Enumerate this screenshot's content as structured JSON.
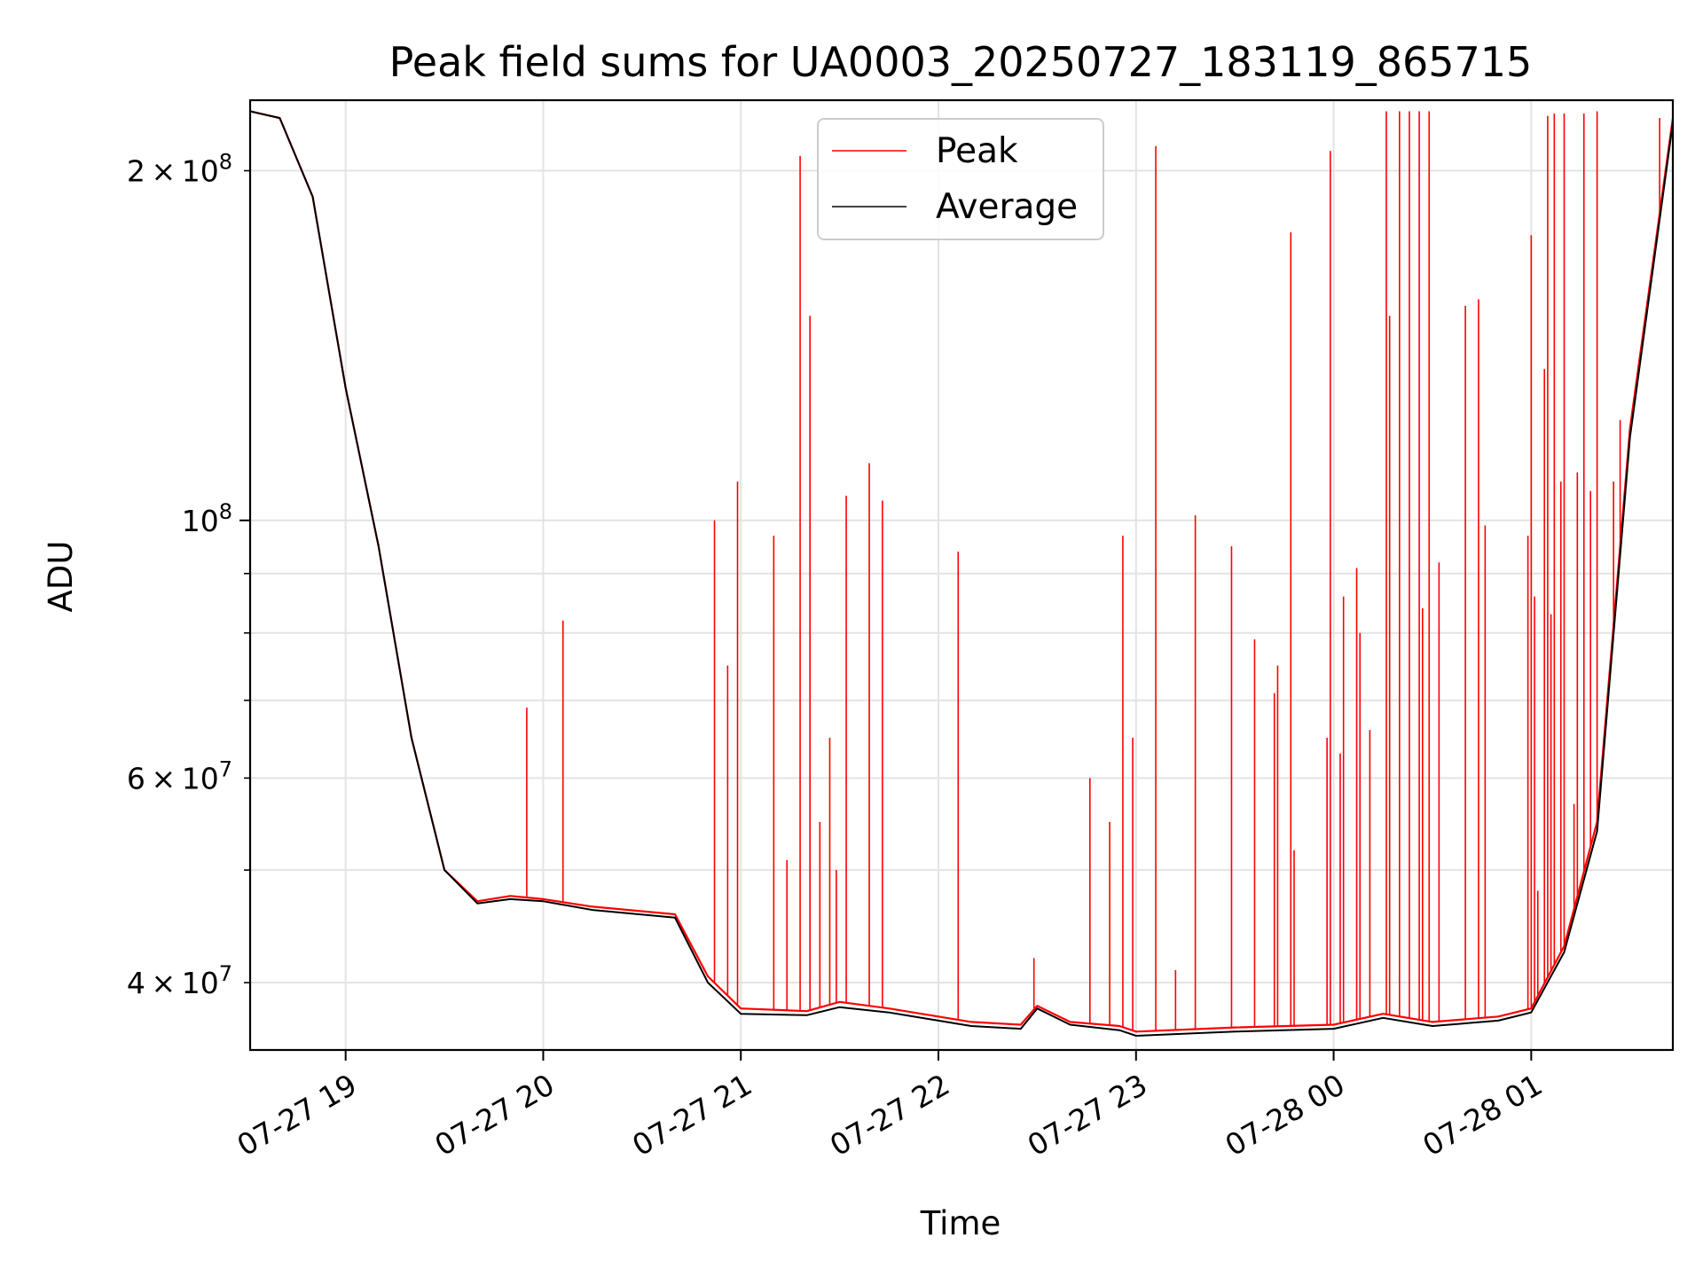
{
  "chart_data": {
    "type": "line",
    "title": "Peak field sums for UA0003_20250727_183119_865715",
    "xlabel": "Time",
    "ylabel": "ADU",
    "y_scale": "log",
    "grid": true,
    "legend_position": "top-center",
    "xlim": [
      "07-27 18:31",
      "07-28 01:43"
    ],
    "ylim": [
      35000000,
      230000000
    ],
    "x_ticks": [
      "07-27 19",
      "07-27 20",
      "07-27 21",
      "07-27 22",
      "07-27 23",
      "07-28 00",
      "07-28 01"
    ],
    "y_ticks_major": [
      {
        "value": 100000000,
        "label": "10^8"
      }
    ],
    "y_ticks_minor": [
      {
        "value": 40000000,
        "label": "4×10^7"
      },
      {
        "value": 60000000,
        "label": "6×10^7"
      },
      {
        "value": 200000000,
        "label": "2×10^8"
      }
    ],
    "y_ticks_minor_unlabeled": [
      50000000,
      70000000,
      80000000,
      90000000
    ],
    "series": [
      {
        "name": "Peak",
        "color": "#ff0000",
        "baseline": [
          [
            "07-27 18:31",
            225000000
          ],
          [
            "07-27 18:40",
            222000000
          ],
          [
            "07-27 18:50",
            190000000
          ],
          [
            "07-27 19:00",
            130000000
          ],
          [
            "07-27 19:10",
            95000000
          ],
          [
            "07-27 19:20",
            65000000
          ],
          [
            "07-27 19:30",
            50000000
          ],
          [
            "07-27 19:40",
            47000000
          ],
          [
            "07-27 19:50",
            47500000
          ],
          [
            "07-27 20:00",
            47200000
          ],
          [
            "07-27 20:15",
            46500000
          ],
          [
            "07-27 20:40",
            45800000
          ],
          [
            "07-27 20:50",
            40500000
          ],
          [
            "07-27 21:00",
            38000000
          ],
          [
            "07-27 21:20",
            37800000
          ],
          [
            "07-27 21:30",
            38500000
          ],
          [
            "07-27 21:45",
            38000000
          ],
          [
            "07-27 22:10",
            37000000
          ],
          [
            "07-27 22:25",
            36800000
          ],
          [
            "07-27 22:30",
            38200000
          ],
          [
            "07-27 22:40",
            37000000
          ],
          [
            "07-27 22:55",
            36700000
          ],
          [
            "07-27 23:00",
            36300000
          ],
          [
            "07-27 23:30",
            36600000
          ],
          [
            "07-28 00:00",
            36800000
          ],
          [
            "07-28 00:15",
            37600000
          ],
          [
            "07-28 00:30",
            37000000
          ],
          [
            "07-28 00:50",
            37400000
          ],
          [
            "07-28 01:00",
            38000000
          ],
          [
            "07-28 01:10",
            43000000
          ],
          [
            "07-28 01:20",
            55000000
          ],
          [
            "07-28 01:30",
            120000000
          ],
          [
            "07-28 01:43",
            222000000
          ]
        ],
        "spikes": [
          [
            "07-27 19:55",
            69000000
          ],
          [
            "07-27 20:06",
            82000000
          ],
          [
            "07-27 20:52",
            100000000
          ],
          [
            "07-27 20:56",
            75000000
          ],
          [
            "07-27 20:59",
            108000000
          ],
          [
            "07-27 21:10",
            97000000
          ],
          [
            "07-27 21:14",
            51000000
          ],
          [
            "07-27 21:18",
            206000000
          ],
          [
            "07-27 21:21",
            150000000
          ],
          [
            "07-27 21:24",
            55000000
          ],
          [
            "07-27 21:27",
            65000000
          ],
          [
            "07-27 21:29",
            50000000
          ],
          [
            "07-27 21:32",
            105000000
          ],
          [
            "07-27 21:39",
            112000000
          ],
          [
            "07-27 21:43",
            104000000
          ],
          [
            "07-27 22:06",
            94000000
          ],
          [
            "07-27 22:29",
            42000000
          ],
          [
            "07-27 22:46",
            60000000
          ],
          [
            "07-27 22:52",
            55000000
          ],
          [
            "07-27 22:56",
            97000000
          ],
          [
            "07-27 22:59",
            65000000
          ],
          [
            "07-27 23:06",
            210000000
          ],
          [
            "07-27 23:12",
            41000000
          ],
          [
            "07-27 23:18",
            101000000
          ],
          [
            "07-27 23:29",
            95000000
          ],
          [
            "07-27 23:36",
            79000000
          ],
          [
            "07-27 23:42",
            71000000
          ],
          [
            "07-27 23:43",
            75000000
          ],
          [
            "07-27 23:47",
            177000000
          ],
          [
            "07-27 23:48",
            52000000
          ],
          [
            "07-27 23:58",
            65000000
          ],
          [
            "07-27 23:59",
            208000000
          ],
          [
            "07-28 00:02",
            63000000
          ],
          [
            "07-28 00:03",
            86000000
          ],
          [
            "07-28 00:07",
            91000000
          ],
          [
            "07-28 00:08",
            80000000
          ],
          [
            "07-28 00:11",
            66000000
          ],
          [
            "07-28 00:16",
            225000000
          ],
          [
            "07-28 00:17",
            150000000
          ],
          [
            "07-28 00:20",
            225000000
          ],
          [
            "07-28 00:23",
            225000000
          ],
          [
            "07-28 00:26",
            225000000
          ],
          [
            "07-28 00:27",
            84000000
          ],
          [
            "07-28 00:29",
            225000000
          ],
          [
            "07-28 00:32",
            92000000
          ],
          [
            "07-28 00:40",
            153000000
          ],
          [
            "07-28 00:44",
            155000000
          ],
          [
            "07-28 00:46",
            99000000
          ],
          [
            "07-28 00:59",
            97000000
          ],
          [
            "07-28 01:00",
            176000000
          ],
          [
            "07-28 01:01",
            86000000
          ],
          [
            "07-28 01:02",
            48000000
          ],
          [
            "07-28 01:04",
            135000000
          ],
          [
            "07-28 01:05",
            223000000
          ],
          [
            "07-28 01:06",
            83000000
          ],
          [
            "07-28 01:07",
            224000000
          ],
          [
            "07-28 01:09",
            108000000
          ],
          [
            "07-28 01:10",
            224000000
          ],
          [
            "07-28 01:13",
            57000000
          ],
          [
            "07-28 01:14",
            110000000
          ],
          [
            "07-28 01:16",
            224000000
          ],
          [
            "07-28 01:18",
            106000000
          ],
          [
            "07-28 01:20",
            225000000
          ],
          [
            "07-28 01:25",
            108000000
          ],
          [
            "07-28 01:27",
            122000000
          ],
          [
            "07-28 01:39",
            222000000
          ]
        ]
      },
      {
        "name": "Average",
        "color": "#000000",
        "baseline": [
          [
            "07-27 18:31",
            225000000
          ],
          [
            "07-27 18:40",
            222000000
          ],
          [
            "07-27 18:50",
            190000000
          ],
          [
            "07-27 19:00",
            130000000
          ],
          [
            "07-27 19:10",
            95000000
          ],
          [
            "07-27 19:20",
            65000000
          ],
          [
            "07-27 19:30",
            50000000
          ],
          [
            "07-27 19:40",
            46800000
          ],
          [
            "07-27 19:50",
            47200000
          ],
          [
            "07-27 20:00",
            47000000
          ],
          [
            "07-27 20:15",
            46200000
          ],
          [
            "07-27 20:40",
            45500000
          ],
          [
            "07-27 20:50",
            40000000
          ],
          [
            "07-27 21:00",
            37600000
          ],
          [
            "07-27 21:20",
            37500000
          ],
          [
            "07-27 21:30",
            38100000
          ],
          [
            "07-27 21:45",
            37700000
          ],
          [
            "07-27 22:10",
            36700000
          ],
          [
            "07-27 22:25",
            36500000
          ],
          [
            "07-27 22:30",
            38000000
          ],
          [
            "07-27 22:40",
            36800000
          ],
          [
            "07-27 22:55",
            36400000
          ],
          [
            "07-27 23:00",
            36000000
          ],
          [
            "07-27 23:30",
            36300000
          ],
          [
            "07-28 00:00",
            36500000
          ],
          [
            "07-28 00:15",
            37300000
          ],
          [
            "07-28 00:30",
            36700000
          ],
          [
            "07-28 00:50",
            37100000
          ],
          [
            "07-28 01:00",
            37700000
          ],
          [
            "07-28 01:10",
            42500000
          ],
          [
            "07-28 01:20",
            54000000
          ],
          [
            "07-28 01:30",
            118000000
          ],
          [
            "07-28 01:43",
            220000000
          ]
        ]
      }
    ]
  }
}
